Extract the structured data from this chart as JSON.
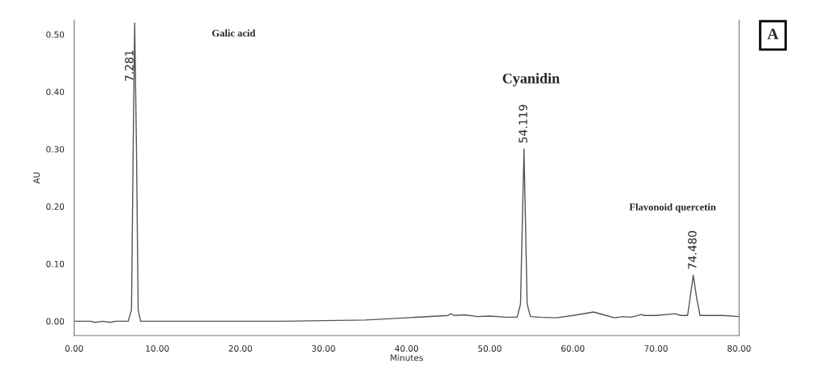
{
  "chart_data": {
    "type": "line",
    "xlabel": "Minutes",
    "ylabel": "AU",
    "x": [
      0,
      2,
      2.5,
      3.5,
      4.3,
      5,
      6.5,
      6.9,
      7.1,
      7.281,
      7.5,
      7.7,
      8,
      15,
      25,
      35,
      40,
      45,
      45.3,
      45.7,
      47,
      48.5,
      50,
      52,
      53.3,
      53.7,
      54.119,
      54.5,
      54.9,
      56,
      58,
      60,
      62.5,
      64,
      65,
      66,
      67,
      68.3,
      68.5,
      70,
      72.3,
      73,
      73.8,
      74.1,
      74.48,
      74.9,
      75.3,
      78,
      80
    ],
    "series": [
      {
        "color": "#555555",
        "values": [
          0.0,
          0.0,
          -0.002,
          0.0,
          -0.002,
          0.0,
          0.0,
          0.02,
          0.3,
          0.52,
          0.3,
          0.02,
          0.0,
          0.0,
          0.0,
          0.002,
          0.006,
          0.01,
          0.013,
          0.01,
          0.011,
          0.008,
          0.009,
          0.007,
          0.007,
          0.03,
          0.3,
          0.03,
          0.008,
          0.007,
          0.006,
          0.01,
          0.016,
          0.01,
          0.006,
          0.008,
          0.007,
          0.012,
          0.01,
          0.01,
          0.013,
          0.01,
          0.01,
          0.04,
          0.08,
          0.04,
          0.01,
          0.01,
          0.008
        ]
      }
    ],
    "xlim": [
      0,
      80
    ],
    "ylim": [
      -0.025,
      0.525
    ],
    "xticks": [
      {
        "value": 0,
        "label": "0.00"
      },
      {
        "value": 10,
        "label": "10.00"
      },
      {
        "value": 20,
        "label": "20.00"
      },
      {
        "value": 30,
        "label": "30.00"
      },
      {
        "value": 40,
        "label": "40.00"
      },
      {
        "value": 50,
        "label": "50.00"
      },
      {
        "value": 60,
        "label": "60.00"
      },
      {
        "value": 70,
        "label": "70.00"
      },
      {
        "value": 80,
        "label": "80.00"
      }
    ],
    "yticks": [
      {
        "value": 0,
        "label": "0.00"
      },
      {
        "value": 0.1,
        "label": "0.10"
      },
      {
        "value": 0.2,
        "label": "0.20"
      },
      {
        "value": 0.3,
        "label": "0.30"
      },
      {
        "value": 0.4,
        "label": "0.40"
      },
      {
        "value": 0.5,
        "label": "0.50"
      }
    ],
    "grid": false,
    "marker": "none",
    "line_style": "solid",
    "annotations": [
      {
        "text": "7.281",
        "x": 7.281,
        "y": 0.52
      },
      "Galic acid",
      {
        "text": "54.119",
        "x": 54.119,
        "y": 0.3
      },
      "Cyanidin",
      {
        "text": "74.480",
        "x": 74.48,
        "y": 0.08
      },
      "Flavonoid quercetin",
      "A"
    ]
  }
}
